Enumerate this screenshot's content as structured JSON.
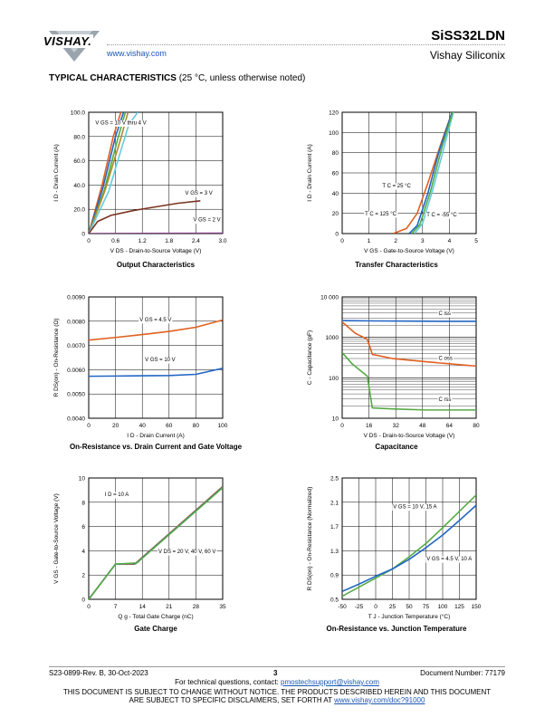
{
  "header": {
    "logo_text": "VISHAY.",
    "url": "www.vishay.com",
    "part_number": "SiSS32LDN",
    "company": "Vishay Siliconix"
  },
  "section": {
    "title": "TYPICAL CHARACTERISTICS",
    "note": "(25 °C, unless otherwise noted)"
  },
  "charts": {
    "output": {
      "caption": "Output Characteristics",
      "xlabel": "V DS - Drain-to-Source Voltage (V)",
      "ylabel": "I D - Drain Current (A)",
      "xticks": [
        "0",
        "0.6",
        "1.2",
        "1.8",
        "2.4",
        "3.0"
      ],
      "yticks": [
        "0",
        "20.0",
        "40.0",
        "60.0",
        "80.0",
        "100.0"
      ],
      "labels": [
        "V GS = 10 V thru 4 V",
        "V GS = 3 V",
        "V GS = 2 V"
      ]
    },
    "transfer": {
      "caption": "Transfer Characteristics",
      "xlabel": "V GS - Gate-to-Source Voltage (V)",
      "ylabel": "I D - Drain Current (A)",
      "xticks": [
        "0",
        "1",
        "2",
        "3",
        "4",
        "5"
      ],
      "yticks": [
        "0",
        "20",
        "40",
        "60",
        "80",
        "100",
        "120"
      ],
      "labels": [
        "T C = 25 °C",
        "T C = 125 °C",
        "T C = -55 °C"
      ]
    },
    "rdson_id": {
      "caption": "On-Resistance vs. Drain Current and Gate Voltage",
      "xlabel": "I D - Drain Current (A)",
      "ylabel": "R DS(on) - On-Resistance (Ω)",
      "xticks": [
        "0",
        "20",
        "40",
        "60",
        "80",
        "100"
      ],
      "yticks": [
        "0.0040",
        "0.0050",
        "0.0060",
        "0.0070",
        "0.0080",
        "0.0090"
      ],
      "labels": [
        "V GS = 4.5 V",
        "V GS = 10 V"
      ]
    },
    "capacitance": {
      "caption": "Capacitance",
      "xlabel": "V DS - Drain-to-Source Voltage (V)",
      "ylabel": "C - Capacitance (pF)",
      "xticks": [
        "0",
        "16",
        "32",
        "48",
        "64",
        "80"
      ],
      "yticks": [
        "10",
        "100",
        "1000",
        "10 000"
      ],
      "labels": [
        "C iss",
        "C oss",
        "C rss"
      ]
    },
    "gate_charge": {
      "caption": "Gate Charge",
      "xlabel": "Q g - Total Gate Charge (nC)",
      "ylabel": "V GS - Gate-to-Source Voltage (V)",
      "xticks": [
        "0",
        "7",
        "14",
        "21",
        "28",
        "35"
      ],
      "yticks": [
        "0",
        "2",
        "4",
        "6",
        "8",
        "10"
      ],
      "labels": [
        "I D = 10 A",
        "V DS = 20 V, 40 V, 60 V"
      ]
    },
    "rdson_tj": {
      "caption": "On-Resistance vs. Junction Temperature",
      "xlabel": "T J - Junction Temperature (°C)",
      "ylabel": "R DS(on) - On-Resistance (Normalized)",
      "xticks": [
        "-50",
        "-25",
        "0",
        "25",
        "50",
        "75",
        "100",
        "125",
        "150"
      ],
      "yticks": [
        "0.5",
        "0.9",
        "1.3",
        "1.7",
        "2.1",
        "2.5"
      ],
      "labels": [
        "V GS = 10 V, 15 A",
        "V GS = 4.5 V, 10 A"
      ]
    }
  },
  "chart_data": [
    {
      "type": "line",
      "id": "output",
      "xlim": [
        0,
        3.0
      ],
      "ylim": [
        0,
        100
      ],
      "series": [
        {
          "color": "#e06020",
          "points": [
            [
              0,
              0
            ],
            [
              0.3,
              40
            ],
            [
              0.55,
              80
            ],
            [
              0.72,
              100
            ]
          ]
        },
        {
          "color": "#2266c4",
          "points": [
            [
              0,
              0
            ],
            [
              0.32,
              38
            ],
            [
              0.6,
              80
            ],
            [
              0.78,
              100
            ]
          ]
        },
        {
          "color": "#55aa44",
          "points": [
            [
              0,
              0
            ],
            [
              0.35,
              36
            ],
            [
              0.65,
              78
            ],
            [
              0.82,
              100
            ]
          ]
        },
        {
          "color": "#b08a2a",
          "points": [
            [
              0,
              0
            ],
            [
              0.36,
              35
            ],
            [
              0.7,
              76
            ],
            [
              0.88,
              100
            ]
          ]
        },
        {
          "color": "#66ccdd",
          "points": [
            [
              0,
              0
            ],
            [
              0.45,
              35
            ],
            [
              0.65,
              60
            ],
            [
              0.9,
              90
            ],
            [
              1.1,
              100
            ]
          ]
        },
        {
          "color": "#7a3320",
          "points": [
            [
              0,
              0
            ],
            [
              0.2,
              10
            ],
            [
              0.5,
              15
            ],
            [
              1.0,
              19
            ],
            [
              1.5,
              22
            ],
            [
              2.0,
              25
            ],
            [
              2.5,
              27
            ]
          ]
        },
        {
          "color": "#884488",
          "points": [
            [
              0,
              0
            ],
            [
              3.0,
              0.3
            ]
          ]
        }
      ]
    },
    {
      "type": "line",
      "id": "transfer",
      "xlim": [
        0,
        5
      ],
      "ylim": [
        0,
        120
      ],
      "series": [
        {
          "color": "#e06020",
          "points": [
            [
              1.9,
              0
            ],
            [
              2.4,
              5
            ],
            [
              2.8,
              20
            ],
            [
              3.2,
              50
            ],
            [
              3.7,
              90
            ],
            [
              4.1,
              120
            ]
          ]
        },
        {
          "color": "#2266c4",
          "points": [
            [
              2.5,
              0
            ],
            [
              2.8,
              8
            ],
            [
              3.2,
              40
            ],
            [
              3.6,
              80
            ],
            [
              4.1,
              120
            ]
          ]
        },
        {
          "color": "#66ccdd",
          "points": [
            [
              2.7,
              0
            ],
            [
              3.0,
              10
            ],
            [
              3.4,
              45
            ],
            [
              3.8,
              85
            ],
            [
              4.15,
              120
            ]
          ]
        },
        {
          "color": "#55aa44",
          "points": [
            [
              2.6,
              0
            ],
            [
              2.9,
              9
            ],
            [
              3.3,
              42
            ],
            [
              3.7,
              83
            ],
            [
              4.12,
              120
            ]
          ]
        }
      ]
    },
    {
      "type": "line",
      "id": "rdson_id",
      "xlim": [
        0,
        100
      ],
      "ylim": [
        0.004,
        0.009
      ],
      "series": [
        {
          "name": "V GS = 4.5 V",
          "color": "#e06020",
          "points": [
            [
              0,
              0.00722
            ],
            [
              20,
              0.00733
            ],
            [
              40,
              0.00745
            ],
            [
              60,
              0.00758
            ],
            [
              80,
              0.00775
            ],
            [
              100,
              0.00805
            ]
          ]
        },
        {
          "name": "V GS = 10 V",
          "color": "#2266c4",
          "points": [
            [
              0,
              0.00573
            ],
            [
              20,
              0.00574
            ],
            [
              40,
              0.00575
            ],
            [
              60,
              0.00576
            ],
            [
              80,
              0.00581
            ],
            [
              100,
              0.00606
            ]
          ]
        }
      ]
    },
    {
      "type": "line",
      "id": "capacitance",
      "xlim": [
        0,
        80
      ],
      "ylim": [
        10,
        10000
      ],
      "yscale": "log",
      "series": [
        {
          "name": "C iss",
          "color": "#2266c4",
          "points": [
            [
              0,
              2600
            ],
            [
              20,
              2550
            ],
            [
              40,
              2520
            ],
            [
              60,
              2500
            ],
            [
              80,
              2500
            ]
          ]
        },
        {
          "name": "C oss",
          "color": "#e06020",
          "points": [
            [
              0,
              2400
            ],
            [
              8,
              1250
            ],
            [
              15,
              900
            ],
            [
              18,
              380
            ],
            [
              30,
              300
            ],
            [
              50,
              250
            ],
            [
              80,
              195
            ]
          ]
        },
        {
          "name": "C rss",
          "color": "#55aa44",
          "points": [
            [
              0,
              420
            ],
            [
              6,
              220
            ],
            [
              15,
              110
            ],
            [
              18,
              18
            ],
            [
              30,
              17
            ],
            [
              50,
              16
            ],
            [
              80,
              16
            ]
          ]
        }
      ]
    },
    {
      "type": "line",
      "id": "gate_charge",
      "xlim": [
        0,
        35
      ],
      "ylim": [
        0,
        10
      ],
      "series": [
        {
          "color": "#e06020",
          "points": [
            [
              0,
              0
            ],
            [
              7,
              2.9
            ],
            [
              12,
              2.9
            ],
            [
              35,
              9.3
            ]
          ]
        },
        {
          "color": "#2266c4",
          "points": [
            [
              0,
              0
            ],
            [
              7,
              2.9
            ],
            [
              12.3,
              2.95
            ],
            [
              35,
              9.25
            ]
          ]
        },
        {
          "color": "#55aa44",
          "points": [
            [
              0,
              0
            ],
            [
              7,
              2.9
            ],
            [
              12.6,
              3.0
            ],
            [
              35,
              9.2
            ]
          ]
        }
      ]
    },
    {
      "type": "line",
      "id": "rdson_tj",
      "xlim": [
        -50,
        150
      ],
      "ylim": [
        0.5,
        2.5
      ],
      "series": [
        {
          "name": "V GS = 10 V, 15 A",
          "color": "#55aa44",
          "points": [
            [
              -50,
              0.55
            ],
            [
              -25,
              0.7
            ],
            [
              0,
              0.85
            ],
            [
              25,
              1.0
            ],
            [
              50,
              1.2
            ],
            [
              75,
              1.42
            ],
            [
              100,
              1.68
            ],
            [
              125,
              1.95
            ],
            [
              150,
              2.22
            ]
          ]
        },
        {
          "name": "V GS = 4.5 V, 10 A",
          "color": "#2266c4",
          "points": [
            [
              -50,
              0.63
            ],
            [
              -25,
              0.75
            ],
            [
              0,
              0.88
            ],
            [
              25,
              1.0
            ],
            [
              50,
              1.16
            ],
            [
              75,
              1.35
            ],
            [
              100,
              1.56
            ],
            [
              125,
              1.8
            ],
            [
              150,
              2.05
            ]
          ]
        }
      ]
    }
  ],
  "footer": {
    "doc_rev": "S23-0899-Rev. B, 30-Oct-2023",
    "page": "3",
    "doc_number": "Document Number: 77179",
    "contact_prefix": "For technical questions, contact: ",
    "contact_email": "pmostechsupport@vishay.com",
    "notice_line1": "THIS DOCUMENT IS SUBJECT TO CHANGE WITHOUT NOTICE. THE PRODUCTS DESCRIBED HEREIN AND THIS DOCUMENT",
    "notice_line2_prefix": "ARE SUBJECT TO SPECIFIC DISCLAIMERS, SET FORTH AT ",
    "notice_link": "www.vishay.com/doc?91000"
  }
}
